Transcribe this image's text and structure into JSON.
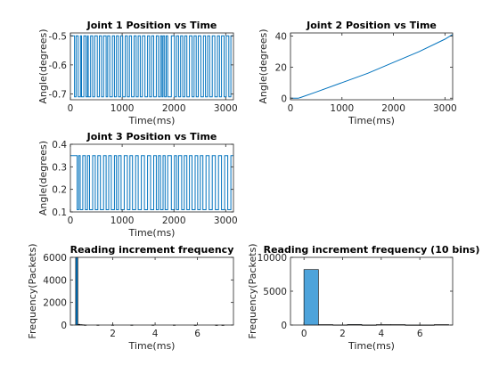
{
  "colors": {
    "line": "#0072BD",
    "bar": "#4DA3DB",
    "axis": "#262626",
    "background": "#FFFFFF"
  },
  "chart_data": [
    {
      "type": "line",
      "title": "Joint 1 Position vs Time",
      "xlabel": "Time(ms)",
      "ylabel": "Angle(degrees)",
      "xlim": [
        0,
        3150
      ],
      "ylim": [
        -0.72,
        -0.49
      ],
      "xticks": [
        "0",
        "1000",
        "2000",
        "3000"
      ],
      "yticks": [
        "-0.5",
        "-0.6",
        "-0.7"
      ],
      "ytick_values": [
        -0.5,
        -0.6,
        -0.7
      ],
      "levels": [
        -0.5,
        -0.71
      ],
      "switch_times": [
        80,
        110,
        150,
        195,
        215,
        260,
        300,
        330,
        345,
        390,
        430,
        470,
        520,
        560,
        600,
        640,
        690,
        720,
        760,
        810,
        850,
        890,
        930,
        970,
        1010,
        1060,
        1100,
        1140,
        1180,
        1230,
        1270,
        1310,
        1350,
        1390,
        1440,
        1490,
        1530,
        1570,
        1610,
        1660,
        1700,
        1740,
        1770,
        1790,
        1820,
        1850,
        1880,
        1950,
        2010,
        2050,
        2090,
        2130,
        2170,
        2210,
        2250,
        2300,
        2350,
        2390,
        2430,
        2470,
        2520,
        2570,
        2610,
        2650,
        2690,
        2740,
        2790,
        2840,
        2880,
        2920,
        2970,
        3010,
        3060,
        3100
      ],
      "series": [
        {
          "name": "",
          "x": [
            0,
            3150
          ],
          "y": [
            -0.5,
            -0.71
          ]
        }
      ]
    },
    {
      "type": "line",
      "title": "Joint 2 Position vs Time",
      "xlabel": "Time(ms)",
      "ylabel": "Angle(degrees)",
      "xlim": [
        0,
        3150
      ],
      "ylim": [
        -1,
        42
      ],
      "xticks": [
        "0",
        "1000",
        "2000",
        "3000"
      ],
      "yticks": [
        "0",
        "20",
        "40"
      ],
      "ytick_values": [
        0,
        20,
        40
      ],
      "series": [
        {
          "name": "",
          "x": [
            0,
            150,
            200,
            500,
            1000,
            1500,
            2000,
            2500,
            3000,
            3150
          ],
          "y": [
            0,
            0,
            0.5,
            4,
            10,
            16,
            23,
            30,
            38,
            41
          ]
        }
      ]
    },
    {
      "type": "line",
      "title": "Joint 3 Position vs Time",
      "xlabel": "Time(ms)",
      "ylabel": "Angle(degrees)",
      "xlim": [
        0,
        3150
      ],
      "ylim": [
        0.1,
        0.4
      ],
      "xticks": [
        "0",
        "1000",
        "2000",
        "3000"
      ],
      "yticks": [
        "0.4",
        "0.3",
        "0.2",
        "0.1"
      ],
      "ytick_values": [
        0.4,
        0.3,
        0.2,
        0.1
      ],
      "levels": [
        0.35,
        0.11
      ],
      "switch_times": [
        130,
        160,
        190,
        240,
        290,
        330,
        370,
        430,
        480,
        530,
        580,
        640,
        690,
        740,
        790,
        850,
        890,
        930,
        980,
        1040,
        1100,
        1150,
        1200,
        1260,
        1310,
        1370,
        1430,
        1490,
        1550,
        1610,
        1660,
        1700,
        1740,
        1790,
        1830,
        1880,
        1950,
        2010,
        2050,
        2090,
        2150,
        2200,
        2250,
        2300,
        2350,
        2410,
        2460,
        2510,
        2560,
        2620,
        2680,
        2740,
        2800,
        2860,
        2920,
        2980,
        3040,
        3100
      ],
      "series": [
        {
          "name": "",
          "x": [
            0,
            3150
          ],
          "y": [
            0.35,
            0.11
          ]
        }
      ]
    },
    {
      "type": "bar",
      "title": "Reading increment frequency",
      "xlabel": "Time(ms)",
      "ylabel": "Frequency(Packets)",
      "xlim": [
        0,
        7.7
      ],
      "ylim": [
        0,
        6000
      ],
      "xticks": [
        "2",
        "4",
        "6"
      ],
      "xtick_values": [
        2,
        4,
        6
      ],
      "yticks": [
        "0",
        "2000",
        "4000",
        "6000"
      ],
      "ytick_values": [
        0,
        2000,
        4000,
        6000
      ],
      "bin_width": 0.1,
      "bins": [
        0.3,
        0.4,
        0.5,
        0.6,
        0.7,
        1.3,
        2.0,
        2.9,
        3.9,
        4.9,
        5.9,
        6.9,
        7.2
      ],
      "values": [
        6000,
        60,
        40,
        20,
        10,
        6,
        5,
        5,
        4,
        4,
        3,
        3,
        3
      ]
    },
    {
      "type": "bar",
      "title": "Reading increment frequency (10 bins)",
      "xlabel": "Time(ms)",
      "ylabel": "Frequency(Packets)",
      "xlim": [
        -0.7,
        7.7
      ],
      "ylim": [
        0,
        10000
      ],
      "xticks": [
        "0",
        "2",
        "4",
        "6"
      ],
      "xtick_values": [
        0,
        2,
        4,
        6
      ],
      "yticks": [
        "0",
        "5000",
        "10000"
      ],
      "ytick_values": [
        0,
        5000,
        10000
      ],
      "bin_width": 0.75,
      "bins": [
        0.37,
        1.12,
        1.87,
        2.62,
        3.37,
        4.12,
        4.87,
        5.62,
        6.37,
        7.12
      ],
      "values": [
        8200,
        60,
        20,
        80,
        10,
        60,
        60,
        10,
        10,
        70
      ]
    }
  ]
}
